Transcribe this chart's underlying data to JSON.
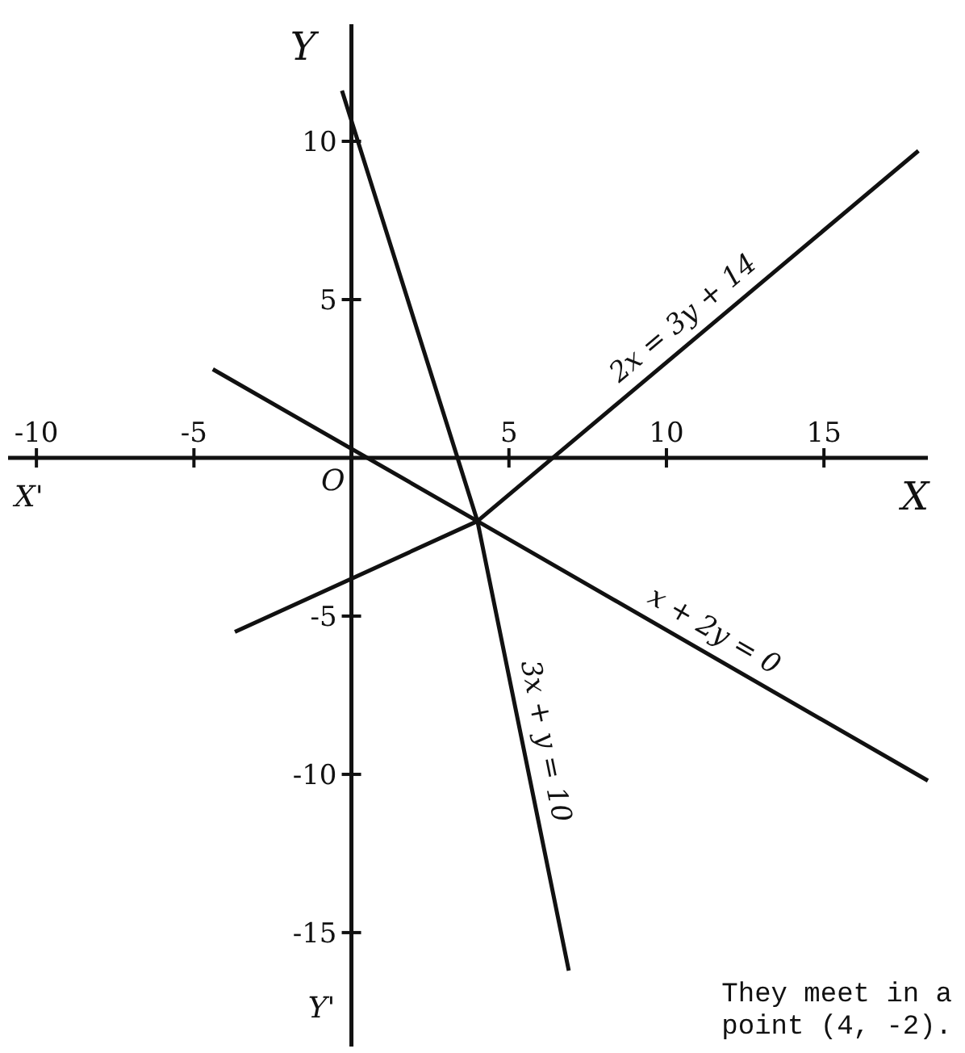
{
  "chart_data": {
    "type": "line",
    "xlabel": "X",
    "ylabel": "Y",
    "xlim": [
      -10.9,
      18.3
    ],
    "ylim": [
      -18.6,
      13.7
    ],
    "xticks": [
      -10,
      -5,
      5,
      10,
      15
    ],
    "yticks": [
      10,
      5,
      -5,
      -10,
      -15
    ],
    "color": "#111111",
    "series": [
      {
        "name": "3x + y = 10",
        "color": "#111111",
        "x": [
          -0.3,
          4,
          6.9
        ],
        "values": [
          11.6,
          -2,
          -16.2
        ]
      },
      {
        "name": "2x = 3y + 14",
        "color": "#111111",
        "x": [
          -3.7,
          4,
          18
        ],
        "values": [
          -5.5,
          -2,
          9.7
        ]
      },
      {
        "name": "x + 2y = 0",
        "color": "#111111",
        "x": [
          -4.4,
          4,
          18.3
        ],
        "values": [
          2.8,
          -2,
          -10.2
        ]
      }
    ],
    "annotations": [
      {
        "text": "O",
        "x": 0,
        "y": 0
      },
      "X'",
      "Y'",
      "They meet in a point (4, -2)."
    ]
  }
}
